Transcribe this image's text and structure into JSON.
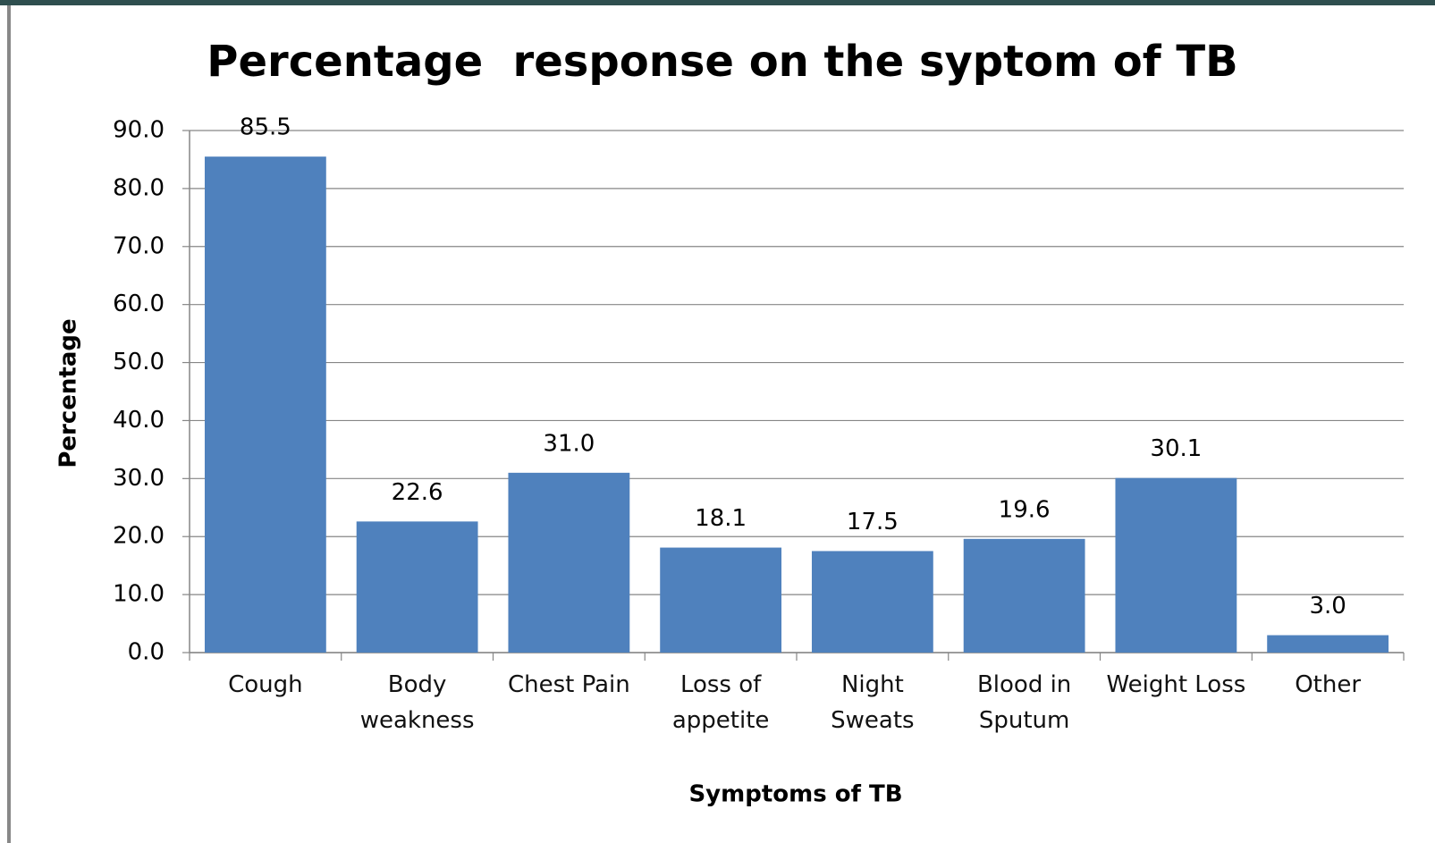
{
  "chart_data": {
    "type": "bar",
    "title": "Percentage  response on the syptom of TB",
    "x_label": "Symptoms of TB",
    "y_label": "Percentage",
    "categories": [
      "Cough",
      "Body weakness",
      "Chest Pain",
      "Loss of appetite",
      "Night Sweats",
      "Blood in Sputum",
      "Weight Loss",
      "Other"
    ],
    "values": [
      85.5,
      22.6,
      31.0,
      18.1,
      17.5,
      19.6,
      30.1,
      3.0
    ],
    "value_labels": [
      "85.5",
      "22.6",
      "31.0",
      "18.1",
      "17.5",
      "19.6",
      "30.1",
      "3.0"
    ],
    "color": "#4f81bd",
    "ylim": [
      0,
      90
    ],
    "yticks": [
      {
        "value": 0,
        "label": "0.0"
      },
      {
        "value": 10,
        "label": "10.0"
      },
      {
        "value": 20,
        "label": "20.0"
      },
      {
        "value": 30,
        "label": "30.0"
      },
      {
        "value": 40,
        "label": "40.0"
      },
      {
        "value": 50,
        "label": "50.0"
      },
      {
        "value": 60,
        "label": "60.0"
      },
      {
        "value": 70,
        "label": "70.0"
      },
      {
        "value": 80,
        "label": "80.0"
      },
      {
        "value": 90,
        "label": "90.0"
      }
    ],
    "grid": true
  }
}
